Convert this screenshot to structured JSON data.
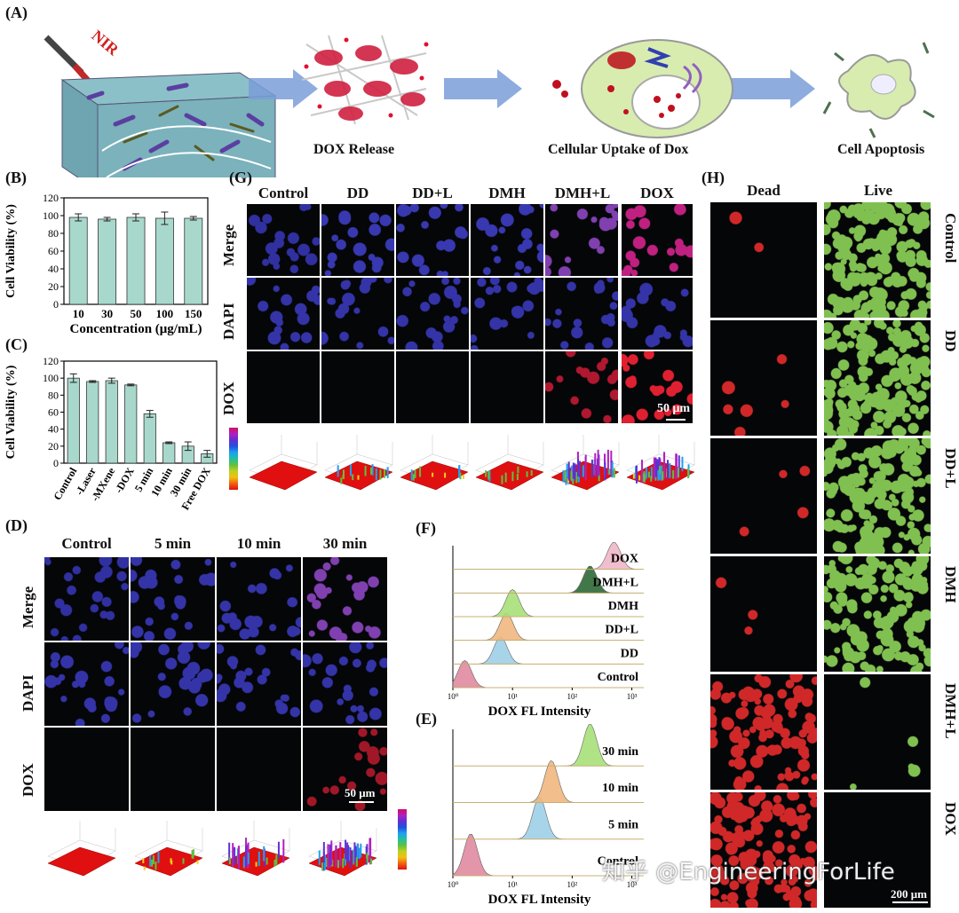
{
  "panel_A": {
    "label": "(A)",
    "nir": "NIR",
    "steps": [
      "DOX Release",
      "Cellular Uptake of Dox",
      "Cell Apoptosis"
    ]
  },
  "panel_B": {
    "label": "(B)"
  },
  "panel_C": {
    "label": "(C)"
  },
  "panel_D": {
    "label": "(D)",
    "columns": [
      "Control",
      "5 min",
      "10 min",
      "30 min"
    ],
    "rows": [
      "Merge",
      "DAPI",
      "DOX"
    ],
    "scale_bar": "50 μm"
  },
  "panel_E": {
    "label": "(E)"
  },
  "panel_F": {
    "label": "(F)"
  },
  "panel_G": {
    "label": "(G)",
    "columns": [
      "Control",
      "DD",
      "DD+L",
      "DMH",
      "DMH+L",
      "DOX"
    ],
    "rows": [
      "Merge",
      "DAPI",
      "DOX"
    ],
    "scale_bar": "50 μm"
  },
  "panel_H": {
    "label": "(H)",
    "columns": [
      "Dead",
      "Live"
    ],
    "rows": [
      "Control",
      "DD",
      "DD+L",
      "DMH",
      "DMH+L",
      "DOX"
    ],
    "scale_bar": "200 μm"
  },
  "watermark": "知乎 @EngineeringForLife",
  "chart_data": [
    {
      "id": "B",
      "type": "bar",
      "categories": [
        "10",
        "30",
        "50",
        "100",
        "150"
      ],
      "values": [
        98,
        96,
        98,
        97,
        97
      ],
      "errors": [
        4,
        2,
        4,
        7,
        2
      ],
      "xlabel": "Concentration (μg/mL)",
      "ylabel": "Cell Viability (%)",
      "ylim": [
        0,
        120
      ],
      "yticks": [
        0,
        20,
        40,
        60,
        80,
        100,
        120
      ],
      "color": "#a8d8cc"
    },
    {
      "id": "C",
      "type": "bar",
      "categories": [
        "Control",
        "-Laser",
        "-MXene",
        "-DOX",
        "5 min",
        "10 min",
        "30 min",
        "Free DOX"
      ],
      "values": [
        100,
        96,
        97,
        92,
        58,
        24,
        20,
        11
      ],
      "errors": [
        5,
        1,
        3,
        1,
        4,
        1,
        5,
        4
      ],
      "xlabel": "",
      "ylabel": "Cell Viability (%)",
      "ylim": [
        0,
        120
      ],
      "yticks": [
        0,
        20,
        40,
        60,
        80,
        100,
        120
      ],
      "color": "#a8d8cc"
    },
    {
      "id": "F",
      "type": "area",
      "xlabel": "DOX FL Intensity",
      "xscale": "log",
      "xticks": [
        "10⁰",
        "10¹",
        "10²",
        "10³"
      ],
      "series": [
        {
          "name": "Control",
          "peak_log": 0.2,
          "color": "#e08aa0"
        },
        {
          "name": "DD",
          "peak_log": 0.8,
          "color": "#9fd0e8"
        },
        {
          "name": "DD+L",
          "peak_log": 0.9,
          "color": "#f0b880"
        },
        {
          "name": "DMH",
          "peak_log": 1.0,
          "color": "#a8e07a"
        },
        {
          "name": "DMH+L",
          "peak_log": 2.3,
          "color": "#2e6a36"
        },
        {
          "name": "DOX",
          "peak_log": 2.7,
          "color": "#f0b8c8"
        }
      ]
    },
    {
      "id": "E",
      "type": "area",
      "xlabel": "DOX FL Intensity",
      "xscale": "log",
      "xticks": [
        "10⁰",
        "10¹",
        "10²",
        "10³"
      ],
      "series": [
        {
          "name": "Control",
          "peak_log": 0.3,
          "color": "#e08aa0"
        },
        {
          "name": "5 min",
          "peak_log": 1.45,
          "color": "#9fd0e8"
        },
        {
          "name": "10 min",
          "peak_log": 1.65,
          "color": "#f0b880"
        },
        {
          "name": "30 min",
          "peak_log": 2.3,
          "color": "#a8e07a"
        }
      ]
    }
  ]
}
